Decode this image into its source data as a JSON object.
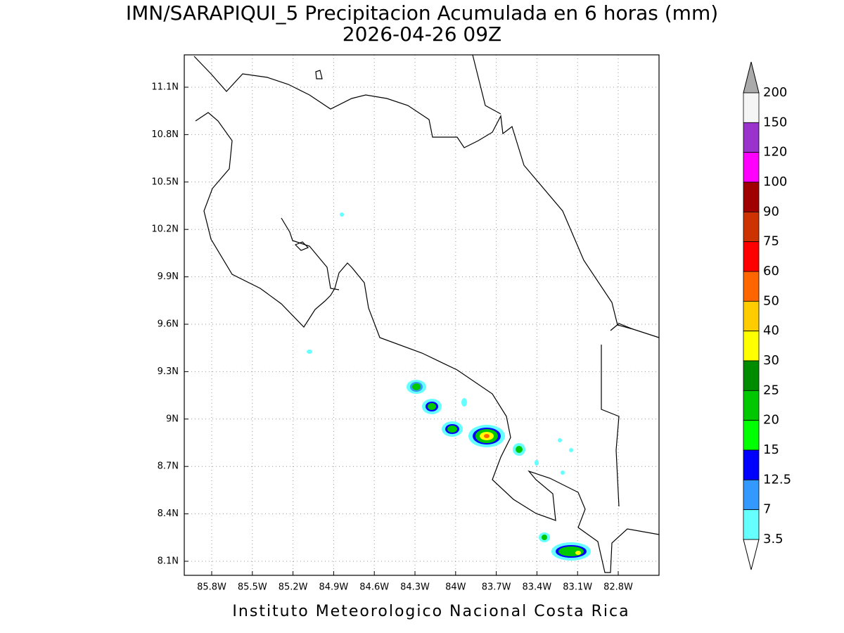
{
  "map": {
    "title": "IMN/SARAPIQUI_5 Precipitacion Acumulada en 6 horas (mm)",
    "subtitle": "2026-04-26 09Z",
    "lon_ticks": [
      "85.8W",
      "85.5W",
      "85.2W",
      "84.9W",
      "84.6W",
      "84.3W",
      "84W",
      "83.7W",
      "83.4W",
      "83.1W",
      "82.8W"
    ],
    "lat_ticks": [
      "11.1N",
      "10.8N",
      "10.5N",
      "10.2N",
      "9.9N",
      "9.6N",
      "9.3N",
      "9N",
      "8.7N",
      "8.4N",
      "8.1N"
    ],
    "colorbar": {
      "labels": [
        "200",
        "150",
        "120",
        "100",
        "90",
        "75",
        "60",
        "50",
        "40",
        "30",
        "25",
        "20",
        "15",
        "12.5",
        "7",
        "3.5"
      ],
      "colors": [
        "#f5f5f5",
        "#9933cc",
        "#ff00ff",
        "#a00000",
        "#cc3300",
        "#ff0000",
        "#ff6600",
        "#ffcc00",
        "#ffff00",
        "#008c00",
        "#00c800",
        "#00ff00",
        "#0000ff",
        "#3399ff",
        "#66ffff"
      ],
      "over_color": "#aaaaaa",
      "under_color": "#ffffff"
    },
    "credit": "Instituto Meteorologico Nacional Costa Rica"
  }
}
